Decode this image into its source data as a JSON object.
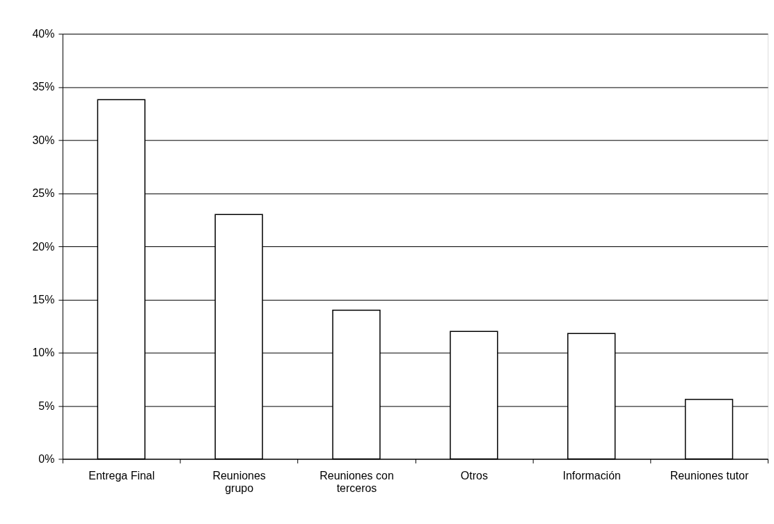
{
  "chart_data": {
    "type": "bar",
    "categories": [
      "Entrega Final",
      "Reuniones grupo",
      "Reuniones con terceros",
      "Otros",
      "Información",
      "Reuniones tutor"
    ],
    "series": [
      {
        "color": "#ffffff",
        "values": [
          33.8,
          23.0,
          14.0,
          12.0,
          11.8,
          5.6
        ]
      }
    ],
    "ylim": [
      0,
      40
    ],
    "yticks": [
      {
        "value": 0,
        "label": "0%"
      },
      {
        "value": 5,
        "label": "5%"
      },
      {
        "value": 10,
        "label": "10%"
      },
      {
        "value": 15,
        "label": "15%"
      },
      {
        "value": 20,
        "label": "20%"
      },
      {
        "value": 25,
        "label": "25%"
      },
      {
        "value": 30,
        "label": "30%"
      },
      {
        "value": 35,
        "label": "35%"
      },
      {
        "value": 40,
        "label": "40%"
      }
    ],
    "grid": "y"
  }
}
